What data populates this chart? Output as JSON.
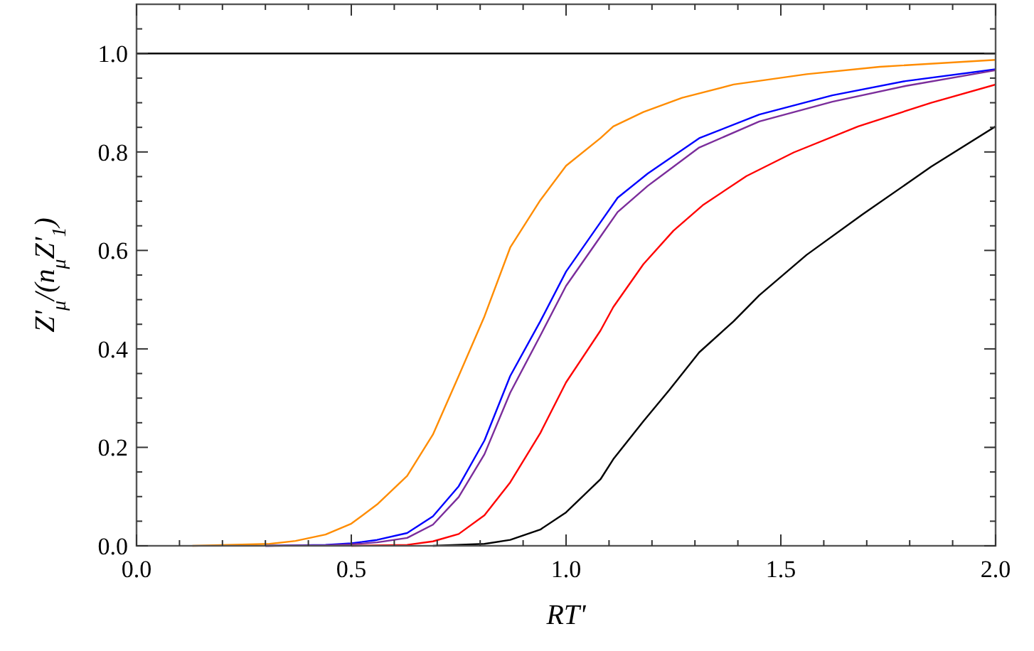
{
  "chart_data": {
    "type": "line",
    "xlabel": "RT'",
    "ylabel": "Z'$_{μ}$/(n$_{μ}$Z'$_{1}$)",
    "xlim": [
      0,
      2
    ],
    "ylim": [
      0,
      1.1
    ],
    "xticks": [
      {
        "value": 0,
        "label": "0.0"
      },
      {
        "value": 0.1,
        "label": null
      },
      {
        "value": 0.2,
        "label": null
      },
      {
        "value": 0.3,
        "label": null
      },
      {
        "value": 0.4,
        "label": null
      },
      {
        "value": 0.5,
        "label": "0.5"
      },
      {
        "value": 0.6,
        "label": null
      },
      {
        "value": 0.7,
        "label": null
      },
      {
        "value": 0.8,
        "label": null
      },
      {
        "value": 0.9,
        "label": null
      },
      {
        "value": 1,
        "label": "1.0"
      },
      {
        "value": 1.1,
        "label": null
      },
      {
        "value": 1.2,
        "label": null
      },
      {
        "value": 1.3,
        "label": null
      },
      {
        "value": 1.4,
        "label": null
      },
      {
        "value": 1.5,
        "label": "1.5"
      },
      {
        "value": 1.6,
        "label": null
      },
      {
        "value": 1.7,
        "label": null
      },
      {
        "value": 1.8,
        "label": null
      },
      {
        "value": 1.9,
        "label": null
      },
      {
        "value": 2,
        "label": "2.0"
      }
    ],
    "yticks": [
      {
        "value": 0,
        "label": "0.0"
      },
      {
        "value": 0.05,
        "label": null
      },
      {
        "value": 0.1,
        "label": null
      },
      {
        "value": 0.15,
        "label": null
      },
      {
        "value": 0.2,
        "label": "0.2"
      },
      {
        "value": 0.25,
        "label": null
      },
      {
        "value": 0.3,
        "label": null
      },
      {
        "value": 0.35,
        "label": null
      },
      {
        "value": 0.4,
        "label": "0.4"
      },
      {
        "value": 0.45,
        "label": null
      },
      {
        "value": 0.5,
        "label": null
      },
      {
        "value": 0.55,
        "label": null
      },
      {
        "value": 0.6,
        "label": "0.6"
      },
      {
        "value": 0.65,
        "label": null
      },
      {
        "value": 0.7,
        "label": null
      },
      {
        "value": 0.75,
        "label": null
      },
      {
        "value": 0.8,
        "label": "0.8"
      },
      {
        "value": 0.85,
        "label": null
      },
      {
        "value": 0.9,
        "label": null
      },
      {
        "value": 0.95,
        "label": null
      },
      {
        "value": 1,
        "label": "1.0"
      },
      {
        "value": 1.05,
        "label": null
      }
    ],
    "grid": false,
    "marker": "none",
    "line_style": "solid",
    "series": [
      {
        "color": "#000000",
        "x": [
          0,
          2
        ],
        "values": [
          1,
          1
        ]
      },
      {
        "color": "#ff8c00",
        "x": [
          0.13,
          0.31,
          0.37,
          0.44,
          0.5,
          0.56,
          0.63,
          0.69,
          0.75,
          0.81,
          0.87,
          0.94,
          1.0,
          1.08,
          1.11,
          1.18,
          1.27,
          1.39,
          1.56,
          1.73,
          2.0
        ],
        "values": [
          0,
          0.004,
          0.01,
          0.023,
          0.045,
          0.084,
          0.142,
          0.226,
          0.345,
          0.466,
          0.606,
          0.702,
          0.772,
          0.828,
          0.852,
          0.881,
          0.91,
          0.937,
          0.958,
          0.973,
          0.987
        ]
      },
      {
        "color": "#0000ff",
        "x": [
          0.3,
          0.44,
          0.5,
          0.56,
          0.63,
          0.69,
          0.75,
          0.81,
          0.87,
          0.94,
          1.0,
          1.08,
          1.12,
          1.19,
          1.31,
          1.45,
          1.62,
          1.79,
          2.0
        ],
        "values": [
          0,
          0.002,
          0.005,
          0.012,
          0.026,
          0.06,
          0.121,
          0.214,
          0.345,
          0.456,
          0.557,
          0.657,
          0.707,
          0.756,
          0.828,
          0.876,
          0.915,
          0.944,
          0.968
        ]
      },
      {
        "color": "#7b2d9b",
        "x": [
          0.3,
          0.44,
          0.5,
          0.56,
          0.63,
          0.69,
          0.75,
          0.81,
          0.87,
          0.94,
          1.0,
          1.08,
          1.12,
          1.19,
          1.31,
          1.45,
          1.62,
          1.79,
          2.0
        ],
        "values": [
          0,
          0.001,
          0.003,
          0.007,
          0.016,
          0.043,
          0.099,
          0.186,
          0.311,
          0.427,
          0.528,
          0.628,
          0.678,
          0.731,
          0.809,
          0.862,
          0.902,
          0.934,
          0.966
        ]
      },
      {
        "color": "#ff0000",
        "x": [
          0.5,
          0.63,
          0.69,
          0.75,
          0.81,
          0.87,
          0.94,
          1.0,
          1.08,
          1.11,
          1.18,
          1.25,
          1.32,
          1.42,
          1.53,
          1.68,
          1.85,
          2.0
        ],
        "values": [
          0,
          0.002,
          0.009,
          0.024,
          0.062,
          0.129,
          0.229,
          0.332,
          0.437,
          0.485,
          0.572,
          0.64,
          0.693,
          0.751,
          0.799,
          0.852,
          0.9,
          0.937
        ]
      },
      {
        "color": "#000000",
        "x": [
          0.69,
          0.81,
          0.87,
          0.94,
          1.0,
          1.08,
          1.11,
          1.18,
          1.24,
          1.31,
          1.39,
          1.45,
          1.56,
          1.69,
          1.85,
          2.0
        ],
        "values": [
          0,
          0.004,
          0.012,
          0.033,
          0.068,
          0.135,
          0.176,
          0.253,
          0.316,
          0.393,
          0.456,
          0.509,
          0.591,
          0.673,
          0.77,
          0.852
        ]
      }
    ]
  }
}
